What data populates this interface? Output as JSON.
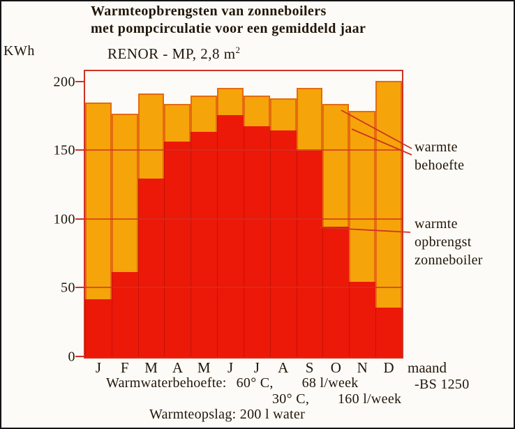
{
  "title": {
    "line1": "Warmteopbrengsten van zonneboilers",
    "line2": "met pompcirculatie voor een gemiddeld jaar"
  },
  "y_unit": "KWh",
  "subtitle": {
    "text": "RENOR - MP, 2,8 m",
    "sup": "2"
  },
  "annotations": {
    "behoefte": "warmte\nbehoefte",
    "opbrengst": "warmte\nopbrengst\nzonneboiler"
  },
  "x_axis_label": "maand",
  "footer": {
    "line1_label": "Warmwaterbehoefte:",
    "line1_temp": "60° C,",
    "line1_value": "68 l/week",
    "line1_right": "-BS 1250",
    "line2_temp": "30° C,",
    "line2_value": "160 l/week",
    "line3": "Warmteopslag: 200 l water"
  },
  "colors": {
    "behoefte": "#F5A40A",
    "opbrengst": "#EC1808",
    "grid": "#D03224",
    "text": "#211509"
  },
  "chart_data": {
    "type": "bar",
    "title": "Warmteopbrengsten van zonneboilers met pompcirculatie voor een gemiddeld jaar",
    "subtitle": "RENOR - MP, 2,8 m2",
    "categories": [
      "J",
      "F",
      "M",
      "A",
      "M",
      "J",
      "J",
      "A",
      "S",
      "O",
      "N",
      "D"
    ],
    "series": [
      {
        "name": "warmte behoefte",
        "color": "#F5A40A",
        "values": [
          185,
          177,
          192,
          184,
          190,
          196,
          190,
          188,
          196,
          184,
          179,
          201
        ]
      },
      {
        "name": "warmte opbrengst zonneboiler",
        "color": "#EC1808",
        "values": [
          42,
          62,
          130,
          157,
          164,
          176,
          168,
          165,
          150,
          95,
          55,
          36
        ]
      }
    ],
    "ylabel": "KWh",
    "xlabel": "maand",
    "ylim": [
      0,
      208
    ],
    "yticks": [
      0,
      50,
      100,
      150,
      200
    ],
    "gridlines": [
      50,
      100,
      150
    ],
    "grid": true,
    "legend_position": "right-annotations"
  }
}
